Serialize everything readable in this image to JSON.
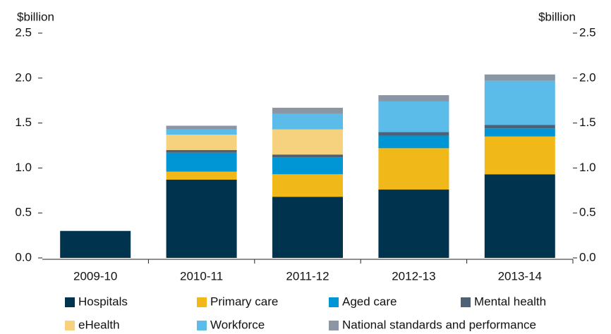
{
  "chart_data": {
    "type": "stacked_bar",
    "ylabel": "$billion",
    "y2label": "$billion",
    "categories": [
      "2009-10",
      "2010-11",
      "2011-12",
      "2012-13",
      "2013-14"
    ],
    "series": [
      {
        "name": "Hospitals",
        "color": "#00334e",
        "values": [
          0.3,
          0.87,
          0.68,
          0.76,
          0.93
        ]
      },
      {
        "name": "Primary care",
        "color": "#f0b919",
        "values": [
          0,
          0.09,
          0.25,
          0.46,
          0.42
        ]
      },
      {
        "name": "Aged care",
        "color": "#0096d6",
        "values": [
          0,
          0.21,
          0.19,
          0.14,
          0.09
        ]
      },
      {
        "name": "Mental health",
        "color": "#4f6175",
        "values": [
          0,
          0.03,
          0.03,
          0.04,
          0.04
        ]
      },
      {
        "name": "eHealth",
        "color": "#f6d27e",
        "values": [
          0,
          0.17,
          0.28,
          0,
          0
        ]
      },
      {
        "name": "Workforce",
        "color": "#5bbbe9",
        "values": [
          0,
          0.06,
          0.17,
          0.34,
          0.49
        ]
      },
      {
        "name": "National standards and performance",
        "color": "#8b96a5",
        "values": [
          0,
          0.04,
          0.07,
          0.07,
          0.07
        ]
      }
    ],
    "ylim": [
      0,
      2.5
    ],
    "yticks": [
      {
        "value": 0,
        "label": "0.0"
      },
      {
        "value": 0.5,
        "label": "0.5"
      },
      {
        "value": 1,
        "label": "1.0"
      },
      {
        "value": 1.5,
        "label": "1.5"
      },
      {
        "value": 2,
        "label": "2.0"
      },
      {
        "value": 2.5,
        "label": "2.5"
      }
    ],
    "y2lim": [
      0,
      2.5
    ],
    "y2ticks": [
      {
        "value": 0,
        "label": "0.0"
      },
      {
        "value": 0.5,
        "label": "0.5"
      },
      {
        "value": 1,
        "label": "1.0"
      },
      {
        "value": 1.5,
        "label": "1.5"
      },
      {
        "value": 2,
        "label": "2.0"
      },
      {
        "value": 2.5,
        "label": "2.5"
      }
    ],
    "grid": false,
    "legend": "bottom"
  }
}
